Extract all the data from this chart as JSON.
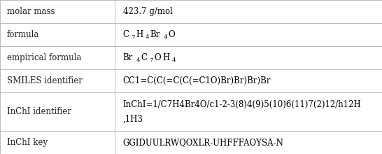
{
  "rows": [
    {
      "label": "molar mass",
      "type": "plain",
      "value": "423.7 g/mol"
    },
    {
      "label": "formula",
      "type": "subscript",
      "value_parts": [
        {
          "text": "C",
          "sub": "7"
        },
        {
          "text": "H",
          "sub": "4"
        },
        {
          "text": "Br",
          "sub": "4"
        },
        {
          "text": "O",
          "sub": ""
        }
      ]
    },
    {
      "label": "empirical formula",
      "type": "subscript",
      "value_parts": [
        {
          "text": "Br",
          "sub": "4"
        },
        {
          "text": "C",
          "sub": "7"
        },
        {
          "text": "O",
          "sub": ""
        },
        {
          "text": "H",
          "sub": "4"
        }
      ]
    },
    {
      "label": "SMILES identifier",
      "type": "plain",
      "value": "CC1=C(C(=C(C(=C1O)Br)Br)Br)Br"
    },
    {
      "label": "InChI identifier",
      "type": "multiline",
      "lines": [
        "InChI=1/C7H4Br4O/c1-2-3(8)4(9)5(10)6(11)7(2)12/h12H",
        ",1H3"
      ]
    },
    {
      "label": "InChI key",
      "type": "plain",
      "value": "GGIDUULRWQOXLR-UHFFFAOYSA-N"
    }
  ],
  "col_split": 0.3,
  "bg_color": "#ffffff",
  "border_color": "#bbbbbb",
  "label_color": "#222222",
  "value_color": "#000000",
  "font_size": 8.5,
  "row_heights": [
    1.0,
    1.0,
    1.0,
    1.0,
    1.65,
    1.0
  ]
}
